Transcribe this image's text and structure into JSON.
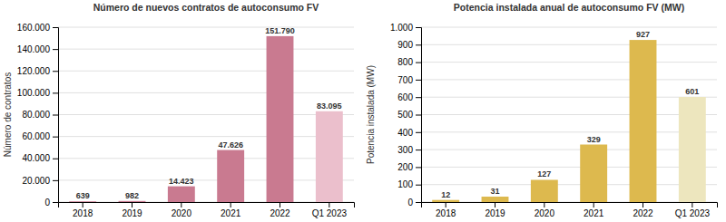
{
  "chart_data": [
    {
      "type": "bar",
      "title": "Número de nuevos contratos de autoconsumo FV",
      "ylabel": "Número de contratos",
      "categories": [
        "2018",
        "2019",
        "2020",
        "2021",
        "2022",
        "Q1 2023"
      ],
      "values": [
        639,
        982,
        14423,
        47626,
        151790,
        83095
      ],
      "value_labels": [
        "639",
        "982",
        "14.423",
        "47.626",
        "151.790",
        "83.095"
      ],
      "colors": [
        "#c97a90",
        "#c97a90",
        "#c97a90",
        "#c97a90",
        "#c97a90",
        "#ebbfcc"
      ],
      "ylim": [
        0,
        160000
      ],
      "yticks": [
        0,
        {
          "value": 20000,
          "label": "20.000"
        },
        {
          "value": 40000,
          "label": "40.000"
        },
        {
          "value": 60000,
          "label": "60.000"
        },
        {
          "value": 80000,
          "label": "80.000"
        },
        {
          "value": 100000,
          "label": "100.000"
        },
        {
          "value": 120000,
          "label": "120.000"
        },
        {
          "value": 140000,
          "label": "140.000"
        },
        {
          "value": 160000,
          "label": "160.000"
        }
      ],
      "grid": true,
      "data_labels": true
    },
    {
      "type": "bar",
      "title": "Potencia instalada anual de autoconsumo FV (MW)",
      "ylabel": "Potencia instalada (MW)",
      "categories": [
        "2018",
        "2019",
        "2020",
        "2021",
        "2022",
        "Q1 2023"
      ],
      "values": [
        12,
        31,
        127,
        329,
        927,
        601
      ],
      "colors": [
        "#ddb94e",
        "#ddb94e",
        "#ddb94e",
        "#ddb94e",
        "#ddb94e",
        "#ede6be"
      ],
      "ylim": [
        0,
        1000
      ],
      "yticks": [
        0,
        100,
        200,
        300,
        400,
        500,
        600,
        700,
        800,
        900,
        {
          "value": 1000,
          "label": "1.000"
        }
      ],
      "grid": true,
      "data_labels": true
    }
  ]
}
